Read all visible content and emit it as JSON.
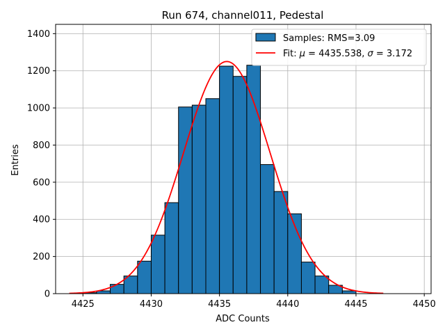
{
  "chart_data": {
    "type": "bar",
    "title": "Run 674, channel011, Pedestal",
    "xlabel": "ADC Counts",
    "ylabel": "Entries",
    "xlim": [
      4423.0,
      4450.5
    ],
    "ylim": [
      0,
      1450
    ],
    "xticks": [
      4425,
      4430,
      4435,
      4440,
      4445,
      4450
    ],
    "yticks": [
      0,
      200,
      400,
      600,
      800,
      1000,
      1200,
      1400
    ],
    "grid": true,
    "legend_position": "top-right",
    "bin_width": 1,
    "bins": [
      {
        "left": 4425,
        "count": 5
      },
      {
        "left": 4426,
        "count": 15
      },
      {
        "left": 4427,
        "count": 50
      },
      {
        "left": 4428,
        "count": 95
      },
      {
        "left": 4429,
        "count": 175
      },
      {
        "left": 4430,
        "count": 315
      },
      {
        "left": 4431,
        "count": 490
      },
      {
        "left": 4432,
        "count": 1005
      },
      {
        "left": 4433,
        "count": 1015
      },
      {
        "left": 4434,
        "count": 1050
      },
      {
        "left": 4435,
        "count": 1225
      },
      {
        "left": 4436,
        "count": 1170
      },
      {
        "left": 4437,
        "count": 1230
      },
      {
        "left": 4438,
        "count": 695
      },
      {
        "left": 4439,
        "count": 550
      },
      {
        "left": 4440,
        "count": 430
      },
      {
        "left": 4441,
        "count": 170
      },
      {
        "left": 4442,
        "count": 95
      },
      {
        "left": 4443,
        "count": 45
      },
      {
        "left": 4444,
        "count": 15
      }
    ],
    "fit": {
      "mu": 4435.538,
      "sigma": 3.172,
      "peak": 1250,
      "x_start": 4424,
      "x_end": 4447
    },
    "series": [
      {
        "name": "Samples: RMS=3.09",
        "kind": "histogram",
        "color": "#1f77b4"
      },
      {
        "name_prefix": "Fit: ",
        "name_mu": "μ",
        "name_mu_value": " = 4435.538, ",
        "name_sigma": "σ",
        "name_sigma_value": " = 3.172",
        "kind": "line",
        "color": "#ff0000"
      }
    ]
  }
}
